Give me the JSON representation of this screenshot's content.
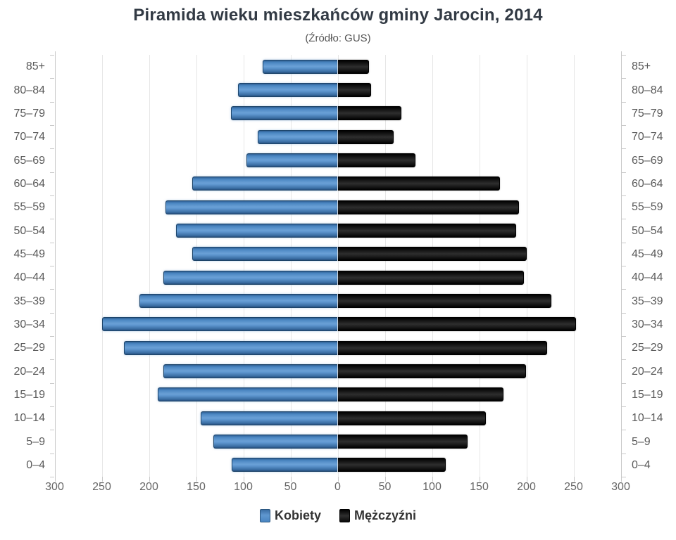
{
  "chart_data": {
    "type": "bar",
    "variant": "population-pyramid",
    "title": "Piramida wieku mieszkańców gminy Jarocin, 2014",
    "subtitle": "(Źródło: GUS)",
    "age_groups": [
      "85+",
      "80–84",
      "75–79",
      "70–74",
      "65–69",
      "60–64",
      "55–59",
      "50–54",
      "45–49",
      "40–44",
      "35–39",
      "30–34",
      "25–29",
      "20–24",
      "15–19",
      "10–14",
      "5–9",
      "0–4"
    ],
    "series": [
      {
        "name": "Kobiety",
        "side": "left",
        "color": "#4a86c2",
        "values": [
          79,
          105,
          113,
          84,
          96,
          154,
          182,
          171,
          154,
          184,
          210,
          249,
          226,
          184,
          190,
          145,
          131,
          112
        ]
      },
      {
        "name": "Mężczyźni",
        "side": "right",
        "color": "#161616",
        "values": [
          33,
          35,
          67,
          59,
          82,
          172,
          192,
          189,
          200,
          197,
          226,
          252,
          222,
          199,
          175,
          157,
          137,
          114
        ]
      }
    ],
    "x_axis": {
      "max_each_side": 300,
      "tick_step": 50,
      "tick_labels": [
        "300",
        "250",
        "200",
        "150",
        "100",
        "50",
        "0",
        "50",
        "100",
        "150",
        "200",
        "250",
        "300"
      ]
    },
    "grid": true,
    "legend_position": "bottom",
    "colors": {
      "female_bar": "#4a86c2",
      "male_bar": "#161616",
      "grid_line": "#e6e6e6",
      "axis_line": "#c9c9c9",
      "age_label_text": "#5a5a5a",
      "axis_label_text": "#666666",
      "title_text": "#323a44",
      "subtitle_text": "#555555"
    }
  }
}
